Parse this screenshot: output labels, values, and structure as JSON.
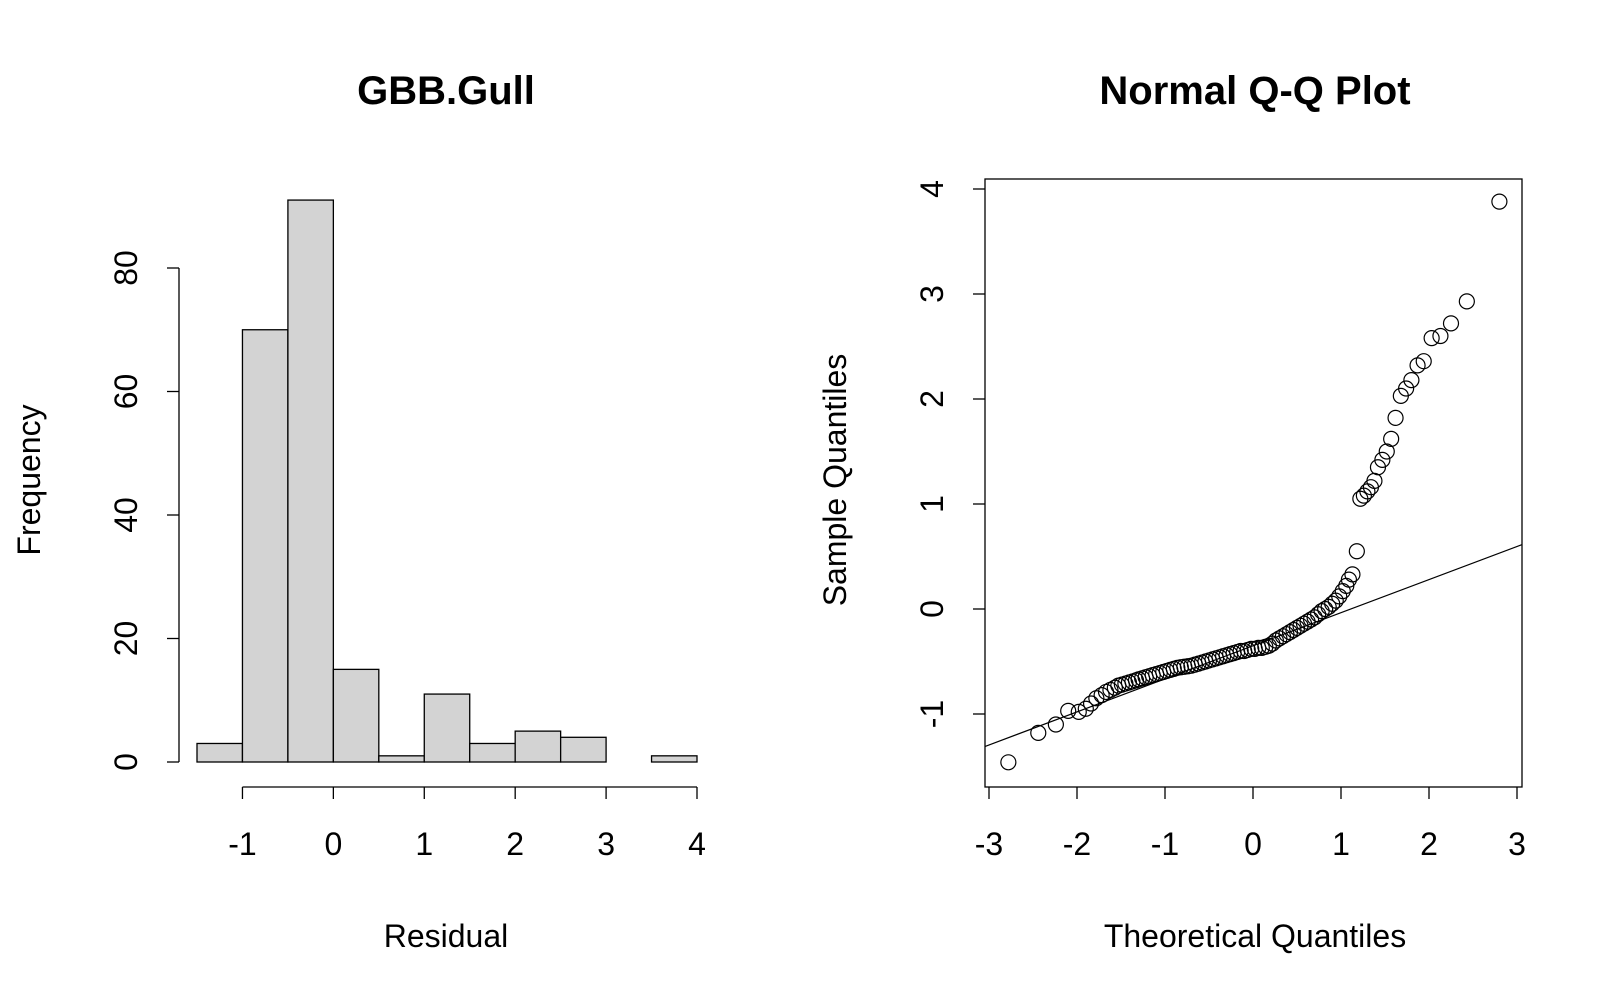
{
  "chart_data": [
    {
      "type": "bar",
      "title": "GBB.Gull",
      "xlabel": "Residual",
      "ylabel": "Frequency",
      "bin_edges": [
        -1.5,
        -1.0,
        -0.5,
        0.0,
        0.5,
        1.0,
        1.5,
        2.0,
        2.5,
        3.0,
        3.5,
        4.0
      ],
      "values": [
        3,
        70,
        91,
        15,
        1,
        11,
        3,
        5,
        4,
        0,
        1
      ],
      "xticks": [
        -1,
        0,
        1,
        2,
        3,
        4
      ],
      "xtick_labels": [
        "-1",
        "0",
        "1",
        "2",
        "3",
        "4"
      ],
      "yticks": [
        0,
        20,
        40,
        60,
        80
      ],
      "ytick_labels": [
        "0",
        "20",
        "40",
        "60",
        "80"
      ],
      "xlim": [
        -1.5,
        4.0
      ],
      "ylim": [
        0,
        91
      ],
      "bar_color": "#d3d3d3",
      "grid": false
    },
    {
      "type": "scatter",
      "title": "Normal Q-Q Plot",
      "xlabel": "Theoretical Quantiles",
      "ylabel": "Sample Quantiles",
      "xticks": [
        -3,
        -2,
        -1,
        0,
        1,
        2,
        3
      ],
      "xtick_labels": [
        "-3",
        "-2",
        "-1",
        "0",
        "1",
        "2",
        "3"
      ],
      "yticks": [
        -1,
        0,
        1,
        2,
        3,
        4
      ],
      "ytick_labels": [
        "-1",
        "0",
        "1",
        "2",
        "3",
        "4"
      ],
      "xlim": [
        -3,
        3
      ],
      "ylim": [
        -1.7,
        4.0
      ],
      "marker": "open-circle",
      "grid": false,
      "reference_line": {
        "intercept": -0.35,
        "slope": 0.315
      },
      "points": {
        "x": [
          -2.78,
          -2.44,
          -2.24,
          -2.1,
          -1.98,
          -1.9,
          -1.84,
          -1.78,
          -1.72,
          -1.67,
          -1.62,
          -1.57,
          -1.53,
          -1.49,
          -1.45,
          -1.41,
          -1.37,
          -1.33,
          -1.3,
          -1.26,
          -1.22,
          -1.18,
          -1.14,
          -1.1,
          -1.06,
          -1.02,
          -0.98,
          -0.94,
          -0.9,
          -0.86,
          -0.82,
          -0.78,
          -0.74,
          -0.7,
          -0.66,
          -0.62,
          -0.58,
          -0.54,
          -0.5,
          -0.46,
          -0.42,
          -0.38,
          -0.34,
          -0.3,
          -0.26,
          -0.22,
          -0.18,
          -0.14,
          -0.1,
          -0.06,
          -0.02,
          0.02,
          0.06,
          0.1,
          0.14,
          0.18,
          0.22,
          0.26,
          0.3,
          0.34,
          0.38,
          0.42,
          0.46,
          0.5,
          0.54,
          0.58,
          0.62,
          0.66,
          0.7,
          0.74,
          0.78,
          0.82,
          0.86,
          0.9,
          0.94,
          0.98,
          1.02,
          1.06,
          1.09,
          1.13,
          1.18,
          1.22,
          1.26,
          1.3,
          1.34,
          1.38,
          1.42,
          1.47,
          1.52,
          1.57,
          1.62,
          1.68,
          1.74,
          1.8,
          1.87,
          1.94,
          2.03,
          2.13,
          2.25,
          2.43,
          2.8
        ],
        "y": [
          -1.46,
          -1.18,
          -1.1,
          -0.97,
          -0.98,
          -0.95,
          -0.9,
          -0.85,
          -0.82,
          -0.79,
          -0.77,
          -0.75,
          -0.73,
          -0.72,
          -0.71,
          -0.7,
          -0.69,
          -0.68,
          -0.67,
          -0.66,
          -0.65,
          -0.64,
          -0.63,
          -0.62,
          -0.61,
          -0.6,
          -0.59,
          -0.58,
          -0.57,
          -0.56,
          -0.555,
          -0.55,
          -0.545,
          -0.54,
          -0.53,
          -0.52,
          -0.51,
          -0.5,
          -0.49,
          -0.48,
          -0.47,
          -0.46,
          -0.45,
          -0.44,
          -0.43,
          -0.42,
          -0.41,
          -0.4,
          -0.4,
          -0.39,
          -0.38,
          -0.38,
          -0.37,
          -0.37,
          -0.36,
          -0.35,
          -0.33,
          -0.3,
          -0.28,
          -0.26,
          -0.24,
          -0.22,
          -0.2,
          -0.18,
          -0.16,
          -0.14,
          -0.12,
          -0.1,
          -0.08,
          -0.05,
          -0.02,
          0.0,
          0.02,
          0.05,
          0.08,
          0.12,
          0.17,
          0.22,
          0.28,
          0.33,
          0.55,
          1.05,
          1.08,
          1.12,
          1.16,
          1.22,
          1.35,
          1.42,
          1.5,
          1.62,
          1.82,
          2.03,
          2.1,
          2.18,
          2.32,
          2.36,
          2.58,
          2.6,
          2.72,
          2.93,
          3.88
        ]
      }
    }
  ]
}
